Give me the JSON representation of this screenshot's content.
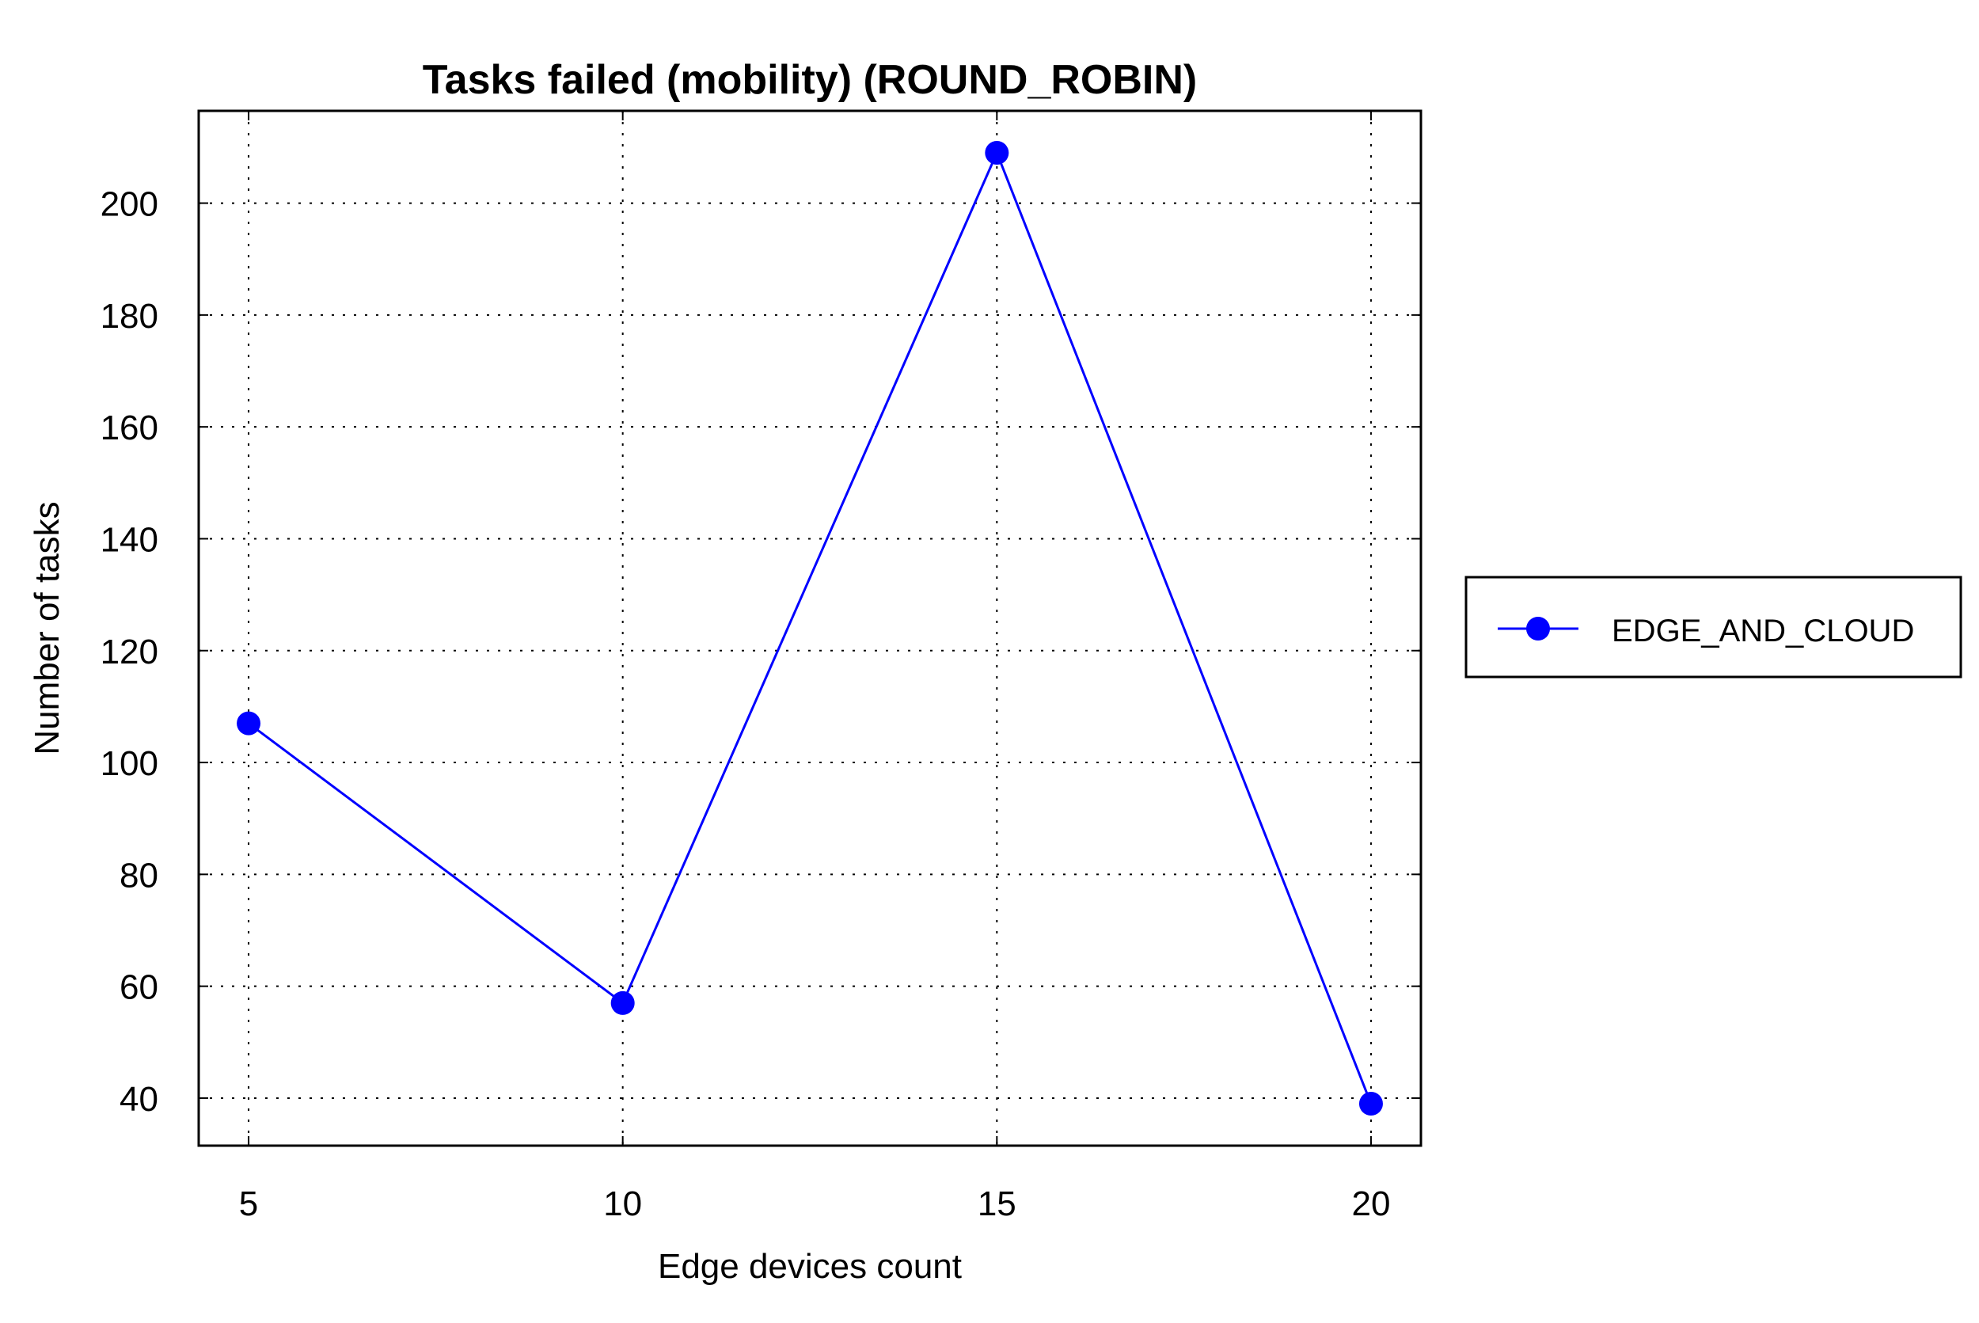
{
  "chart_data": {
    "type": "line",
    "title": "Tasks failed (mobility) (ROUND_ROBIN)",
    "xlabel": "Edge devices count",
    "ylabel": "Number of tasks",
    "x": [
      5,
      10,
      15,
      20
    ],
    "x_tick_labels": [
      "5",
      "10",
      "15",
      "20"
    ],
    "xlim": [
      4.333,
      20.667
    ],
    "ylim": [
      31.5,
      216.5
    ],
    "y_ticks": [
      40,
      60,
      80,
      100,
      120,
      140,
      160,
      180,
      200
    ],
    "y_tick_labels": [
      "40",
      "60",
      "80",
      "100",
      "120",
      "140",
      "160",
      "180",
      "200"
    ],
    "grid": true,
    "legend_position": "outside-right",
    "series": [
      {
        "name": "EDGE_AND_CLOUD",
        "values": [
          107,
          57,
          209,
          39
        ],
        "color": "#0000ff",
        "marker": "circle"
      }
    ]
  }
}
